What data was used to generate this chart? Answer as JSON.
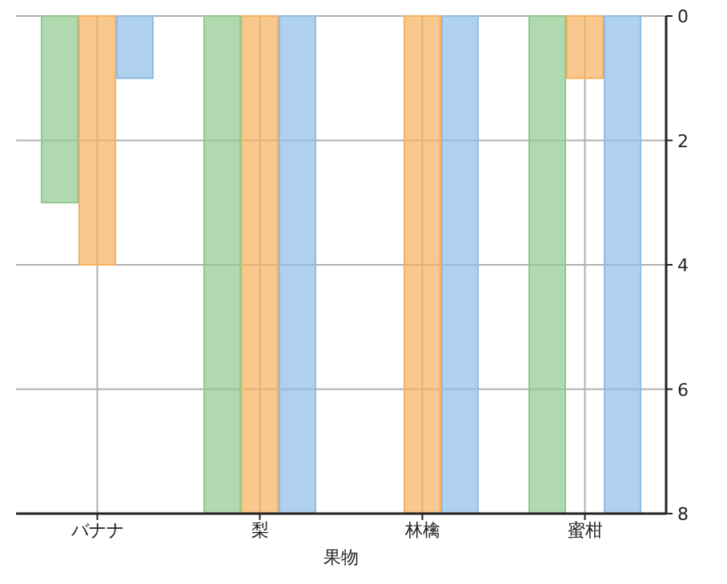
{
  "chart_data": {
    "type": "bar",
    "xlabel": "果物",
    "categories": [
      "バナナ",
      "梨",
      "林檎",
      "蜜柑"
    ],
    "series": [
      {
        "color": "#8fc98f",
        "values": [
          3,
          8,
          null,
          8
        ]
      },
      {
        "color": "#f5b060",
        "values": [
          4,
          8,
          8,
          1
        ]
      },
      {
        "color": "#8fbde6",
        "values": [
          1,
          8,
          8,
          8
        ]
      }
    ],
    "ylim": [
      8,
      0
    ],
    "yticks": [
      0,
      2,
      4,
      6,
      8
    ],
    "grid": true
  }
}
